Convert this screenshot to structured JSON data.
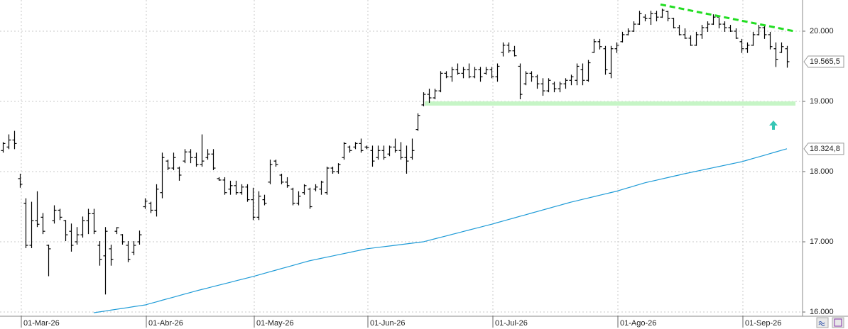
{
  "chart_data": {
    "type": "ohlc",
    "categories": [
      null,
      null,
      null,
      "01-Mar-26",
      null,
      null,
      null,
      null,
      null,
      null,
      null,
      null,
      null,
      null,
      null,
      null,
      null,
      null,
      null,
      null,
      null,
      null,
      null,
      null,
      null,
      "01-Abr-26",
      null,
      null,
      null,
      null,
      null,
      null,
      null,
      null,
      null,
      null,
      null,
      null,
      null,
      null,
      null,
      null,
      null,
      null,
      "01-May-26",
      null,
      null,
      null,
      null,
      null,
      null,
      null,
      null,
      null,
      null,
      null,
      null,
      null,
      null,
      null,
      null,
      null,
      null,
      null,
      "01-Jun-26",
      null,
      null,
      null,
      null,
      null,
      null,
      null,
      null,
      null,
      null,
      null,
      null,
      null,
      null,
      null,
      null,
      null,
      null,
      null,
      null,
      null,
      "01-Jul-26",
      null,
      null,
      null,
      null,
      null,
      null,
      null,
      null,
      null,
      null,
      null,
      null,
      null,
      null,
      null,
      null,
      null,
      null,
      null,
      null,
      null,
      "01-Ago-26",
      null,
      null,
      null,
      null,
      null,
      null,
      null,
      null,
      null,
      null,
      null,
      null,
      null,
      null,
      null,
      null,
      null,
      null,
      null,
      null,
      null,
      "01-Sep-26",
      null,
      null,
      null,
      null,
      null,
      null,
      null,
      null
    ],
    "open": [
      18300,
      18350,
      18450,
      17900,
      17550,
      16950,
      17300,
      17350,
      16950,
      17300,
      17450,
      17300,
      17150,
      17000,
      17100,
      17300,
      17400,
      16950,
      16800,
      16900,
      17150,
      17100,
      16950,
      16850,
      17000,
      17500,
      17550,
      17450,
      17700,
      18150,
      18050,
      18050,
      18150,
      18280,
      18200,
      18100,
      18200,
      18250,
      17900,
      17880,
      17750,
      17800,
      17700,
      17780,
      17600,
      17350,
      17600,
      17850,
      18150,
      17950,
      17850,
      17750,
      17550,
      17700,
      17750,
      17750,
      17750,
      17700,
      18050,
      18000,
      18200,
      18350,
      18350,
      18400,
      18350,
      18300,
      18200,
      18300,
      18250,
      18350,
      18300,
      18200,
      18200,
      18600,
      18950,
      19100,
      19050,
      19150,
      19400,
      19350,
      19450,
      19400,
      19450,
      19350,
      19450,
      19400,
      19450,
      19350,
      19700,
      19800,
      19720,
      19500,
      19250,
      19400,
      19350,
      19250,
      19150,
      19250,
      19180,
      19250,
      19300,
      19300,
      19450,
      19300,
      19700,
      19850,
      19750,
      19400,
      19750,
      19850,
      19950,
      20000,
      20100,
      20200,
      20180,
      20250,
      20200,
      20280,
      20180,
      20050,
      19950,
      19900,
      19800,
      19950,
      20050,
      20100,
      20200,
      20100,
      20050,
      20000,
      19850,
      19750,
      19800,
      19950,
      20050,
      19950,
      19750,
      19700,
      19750
    ],
    "high": [
      18420,
      18530,
      18580,
      17970,
      17620,
      17570,
      17720,
      17410,
      16960,
      17520,
      17470,
      17310,
      17260,
      17210,
      17360,
      17470,
      17470,
      17010,
      17210,
      16960,
      17210,
      17110,
      17010,
      17010,
      17160,
      17620,
      17570,
      17820,
      18270,
      18170,
      18270,
      18070,
      18320,
      18320,
      18270,
      18530,
      18320,
      18320,
      17920,
      17920,
      17870,
      17870,
      17820,
      17820,
      17770,
      17720,
      17670,
      18170,
      18170,
      17970,
      17920,
      17770,
      17720,
      17820,
      17770,
      17820,
      17870,
      18070,
      18070,
      18120,
      18420,
      18370,
      18420,
      18470,
      18370,
      18370,
      18370,
      18370,
      18370,
      18470,
      18420,
      18370,
      18470,
      18830,
      19130,
      19180,
      19180,
      19430,
      19430,
      19490,
      19540,
      19490,
      19540,
      19490,
      19490,
      19490,
      19490,
      19540,
      19840,
      19840,
      19790,
      19540,
      19430,
      19430,
      19380,
      19330,
      19330,
      19280,
      19280,
      19330,
      19380,
      19540,
      19540,
      19590,
      19890,
      19890,
      19790,
      19790,
      19840,
      19990,
      20040,
      20140,
      20290,
      20240,
      20290,
      20290,
      20320,
      20290,
      20190,
      20090,
      20040,
      19940,
      19990,
      20090,
      20140,
      20240,
      20190,
      20140,
      20090,
      20040,
      19890,
      19840,
      19990,
      20090,
      20090,
      19990,
      19840,
      19840,
      19790
    ],
    "low": [
      18270,
      18320,
      18320,
      17770,
      16910,
      16910,
      17210,
      17110,
      16510,
      17260,
      17310,
      17010,
      16860,
      16960,
      17060,
      17110,
      17110,
      16660,
      16250,
      16660,
      17110,
      16960,
      16710,
      16810,
      16960,
      17470,
      17410,
      17360,
      17620,
      18020,
      18020,
      17870,
      18120,
      18120,
      18070,
      18070,
      18170,
      18020,
      17870,
      17670,
      17670,
      17670,
      17670,
      17570,
      17310,
      17310,
      17520,
      17820,
      18070,
      17820,
      17770,
      17520,
      17520,
      17670,
      17470,
      17720,
      17670,
      17670,
      17970,
      17970,
      18170,
      18270,
      18320,
      18270,
      18320,
      18070,
      18170,
      18170,
      18220,
      18270,
      18170,
      17970,
      18170,
      18580,
      18930,
      18980,
      19030,
      19130,
      19330,
      19280,
      19380,
      19330,
      19330,
      19330,
      19280,
      19380,
      19330,
      19280,
      19640,
      19690,
      19640,
      19030,
      19230,
      19280,
      19180,
      19080,
      19130,
      19130,
      19130,
      19180,
      19230,
      19230,
      19230,
      19280,
      19690,
      19740,
      19380,
      19330,
      19690,
      19840,
      19940,
      19990,
      20090,
      20140,
      20090,
      20140,
      20190,
      20140,
      20040,
      19940,
      19890,
      19790,
      19790,
      19890,
      19990,
      20090,
      20040,
      19990,
      19990,
      19890,
      19690,
      19690,
      19790,
      19940,
      19890,
      19740,
      19490,
      19690,
      19480
    ],
    "close": [
      18400,
      18450,
      18400,
      17820,
      16950,
      17300,
      17250,
      17150,
      16900,
      17450,
      17350,
      17100,
      16950,
      17100,
      17300,
      17400,
      17150,
      16750,
      17150,
      16750,
      17200,
      17000,
      16750,
      16950,
      17100,
      17580,
      17450,
      17750,
      18200,
      18050,
      18200,
      17950,
      18280,
      18200,
      18100,
      18150,
      18250,
      18050,
      17880,
      17700,
      17800,
      17700,
      17780,
      17600,
      17350,
      17650,
      17550,
      18100,
      18100,
      17850,
      17800,
      17550,
      17650,
      17800,
      17500,
      17780,
      17850,
      18050,
      18000,
      18100,
      18400,
      18300,
      18400,
      18300,
      18340,
      18150,
      18300,
      18200,
      18350,
      18300,
      18200,
      18150,
      18300,
      18800,
      19100,
      19050,
      19150,
      19400,
      19350,
      19450,
      19400,
      19450,
      19350,
      19450,
      19350,
      19450,
      19350,
      19500,
      19800,
      19720,
      19650,
      19100,
      19400,
      19350,
      19250,
      19150,
      19300,
      19180,
      19250,
      19300,
      19350,
      19500,
      19300,
      19550,
      19850,
      19780,
      19450,
      19750,
      19800,
      19950,
      20000,
      20100,
      20250,
      20180,
      20250,
      20200,
      20300,
      20180,
      20050,
      19950,
      19900,
      19800,
      19950,
      20050,
      20100,
      20200,
      20100,
      20050,
      20000,
      19900,
      19750,
      19800,
      19950,
      20050,
      19950,
      19780,
      19600,
      19780,
      19565.5
    ],
    "color": "#000000",
    "moving_average": {
      "color": "#1e9bd7",
      "values": [
        null,
        null,
        null,
        null,
        null,
        null,
        null,
        null,
        null,
        null,
        null,
        null,
        null,
        null,
        null,
        null,
        15990,
        16002,
        16014,
        16027,
        16039,
        16051,
        16063,
        16076,
        16088,
        16100,
        16122,
        16144,
        16167,
        16189,
        16211,
        16233,
        16256,
        16278,
        16300,
        16321,
        16341,
        16362,
        16382,
        16403,
        16423,
        16444,
        16464,
        16485,
        16505,
        16528,
        16550,
        16573,
        16595,
        16618,
        16640,
        16663,
        16685,
        16708,
        16730,
        16747,
        16764,
        16781,
        16798,
        16815,
        16832,
        16849,
        16866,
        16883,
        16900,
        16910,
        16920,
        16930,
        16940,
        16950,
        16960,
        16970,
        16980,
        16990,
        17000,
        17021,
        17042,
        17063,
        17083,
        17104,
        17125,
        17146,
        17167,
        17188,
        17208,
        17229,
        17250,
        17273,
        17295,
        17318,
        17340,
        17363,
        17385,
        17408,
        17430,
        17453,
        17475,
        17498,
        17520,
        17543,
        17565,
        17584,
        17604,
        17623,
        17643,
        17662,
        17681,
        17701,
        17720,
        17744,
        17768,
        17792,
        17816,
        17840,
        17859,
        17877,
        17896,
        17914,
        17933,
        17951,
        17970,
        17987,
        18004,
        18021,
        18038,
        18055,
        18072,
        18089,
        18106,
        18123,
        18140,
        18163,
        18186,
        18209,
        18232,
        18256,
        18279,
        18302,
        18324.8
      ]
    },
    "ylim": [
      15950,
      20444
    ],
    "yticks": [
      {
        "value": 16000,
        "label": "16.000"
      },
      {
        "value": 17000,
        "label": "17.000"
      },
      {
        "value": 18000,
        "label": "18.000"
      },
      {
        "value": 19000,
        "label": "19.000"
      },
      {
        "value": 20000,
        "label": "20.000"
      }
    ],
    "grid": true,
    "price_tags": [
      {
        "value": 19565.5,
        "label": "19.565,5"
      },
      {
        "value": 18324.8,
        "label": "18.324,8"
      }
    ],
    "resistance_line": {
      "color": "#22dd22",
      "start": 20380,
      "end": 20000
    },
    "support_zone": {
      "color": "#c6f5c6",
      "top": 19000,
      "bottom": 18940
    }
  }
}
